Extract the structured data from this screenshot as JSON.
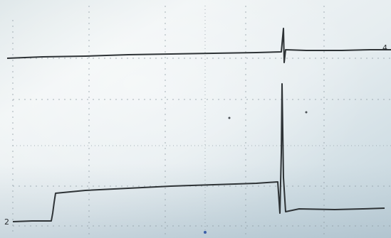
{
  "channels": [
    {
      "marker": "4"
    },
    {
      "marker": "2"
    }
  ]
}
